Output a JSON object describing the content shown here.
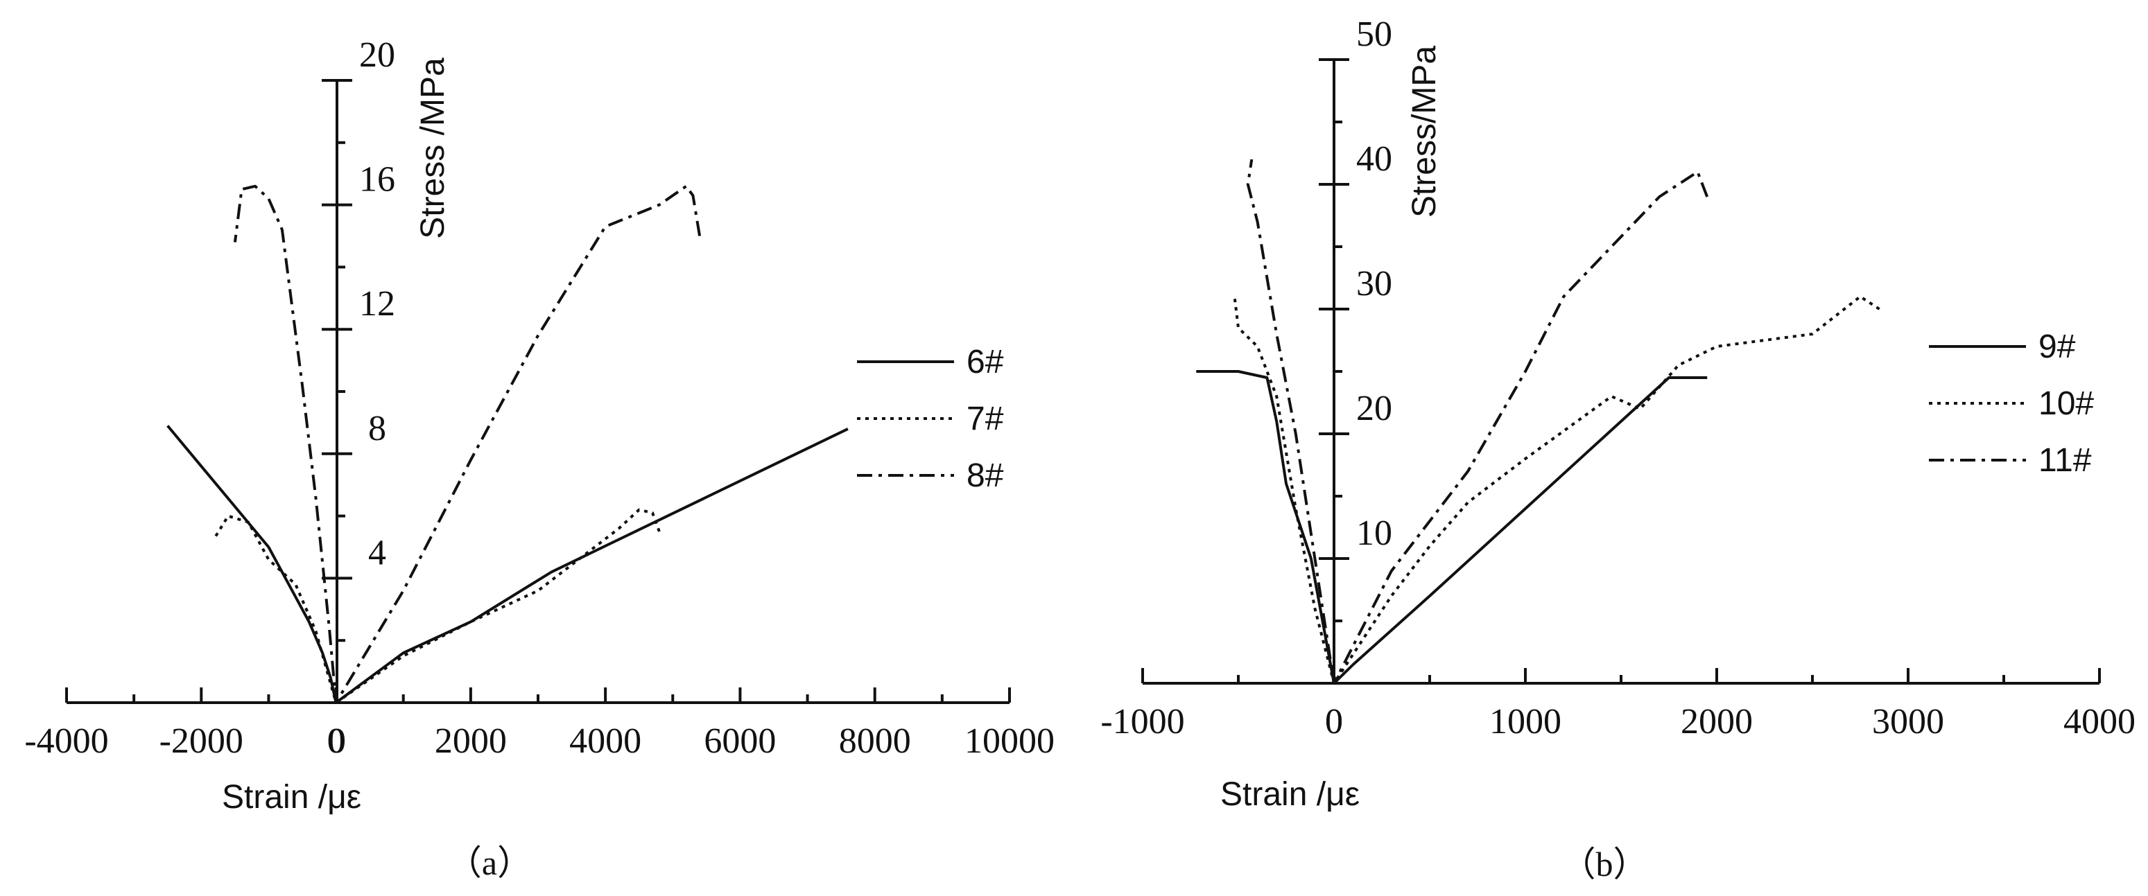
{
  "chart_data": [
    {
      "type": "line",
      "panel_label": "（a）",
      "xlabel": "Strain /με",
      "ylabel": "Stress /MPa",
      "xlim": [
        -4000,
        10000
      ],
      "ylim": [
        0,
        20
      ],
      "xticks": [
        -4000,
        -2000,
        0,
        2000,
        4000,
        6000,
        8000,
        10000
      ],
      "yticks": [
        4,
        8,
        12,
        16,
        20
      ],
      "legend_position": "right",
      "series": [
        {
          "name": "6#",
          "style": "solid",
          "x": [
            7600,
            3200,
            2000,
            1000,
            0,
            -80,
            -200,
            -400,
            -700,
            -1000,
            -1500,
            -2000,
            -2500
          ],
          "y": [
            8.8,
            4.2,
            2.6,
            1.6,
            0,
            0.8,
            1.6,
            2.6,
            3.8,
            5.0,
            6.3,
            7.6,
            8.9
          ]
        },
        {
          "name": "7#",
          "style": "dotted",
          "x": [
            4800,
            4700,
            4500,
            4200,
            3000,
            2000,
            1000,
            0,
            -300,
            -600,
            -1000,
            -1300,
            -1600,
            -1800
          ],
          "y": [
            5.5,
            6.1,
            6.2,
            5.6,
            3.6,
            2.6,
            1.5,
            0,
            2.3,
            3.8,
            4.6,
            5.8,
            6.0,
            5.3
          ]
        },
        {
          "name": "8#",
          "style": "dash-dot",
          "x": [
            5400,
            5300,
            5200,
            4800,
            4000,
            3000,
            2000,
            1000,
            0,
            -100,
            -300,
            -500,
            -800,
            -1000,
            -1200,
            -1400,
            -1500
          ],
          "y": [
            15.0,
            16.3,
            16.6,
            16.0,
            15.3,
            11.8,
            7.8,
            3.6,
            0,
            2.4,
            6.6,
            10.2,
            15.2,
            16.2,
            16.6,
            16.5,
            14.8
          ]
        }
      ]
    },
    {
      "type": "line",
      "panel_label": "（b）",
      "xlabel": "Strain /με",
      "ylabel": "Stress/MPa",
      "xlim": [
        -1000,
        4000
      ],
      "ylim": [
        0,
        50
      ],
      "xticks": [
        -1000,
        0,
        1000,
        2000,
        3000,
        4000
      ],
      "yticks": [
        10,
        20,
        30,
        40,
        50
      ],
      "legend_position": "right",
      "series": [
        {
          "name": "9#",
          "style": "solid",
          "x": [
            1950,
            1750,
            1500,
            1000,
            500,
            100,
            0,
            -120,
            -250,
            -300,
            -350,
            -500,
            -720
          ],
          "y": [
            24.5,
            24.5,
            21.0,
            14.0,
            7.0,
            1.5,
            0,
            10.0,
            16.0,
            21.0,
            24.5,
            25.0,
            25.0
          ]
        },
        {
          "name": "10#",
          "style": "dotted",
          "x": [
            2850,
            2750,
            2500,
            2000,
            1800,
            1600,
            1450,
            1000,
            700,
            500,
            300,
            0,
            -100,
            -200,
            -300,
            -400,
            -500,
            -520
          ],
          "y": [
            30.0,
            31.0,
            28.0,
            27.0,
            25.5,
            22.0,
            23.0,
            18.0,
            14.5,
            11.0,
            7.0,
            0,
            6.0,
            14.0,
            23.0,
            27.0,
            28.5,
            31.0
          ]
        },
        {
          "name": "11#",
          "style": "dash-dot",
          "x": [
            1950,
            1900,
            1700,
            1200,
            1000,
            700,
            300,
            0,
            -100,
            -200,
            -300,
            -400,
            -450,
            -430
          ],
          "y": [
            39.0,
            41.0,
            39.0,
            31.0,
            25.0,
            17.0,
            9.0,
            0,
            10.0,
            20.0,
            28.0,
            37.0,
            40.0,
            42.0
          ]
        }
      ]
    }
  ]
}
